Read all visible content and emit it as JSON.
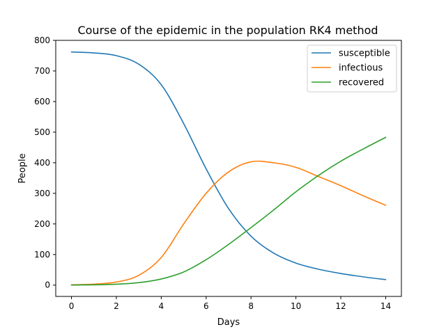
{
  "chart_data": {
    "type": "line",
    "title": "Course of the epidemic in the population RK4 method",
    "xlabel": "Days",
    "ylabel": "People",
    "xlim": [
      -0.7,
      14.7
    ],
    "ylim": [
      -37,
      800
    ],
    "xticks": [
      0,
      2,
      4,
      6,
      8,
      10,
      12,
      14
    ],
    "yticks": [
      0,
      100,
      200,
      300,
      400,
      500,
      600,
      700,
      800
    ],
    "grid": false,
    "legend": "top-right",
    "x": [
      0,
      1,
      2,
      3,
      4,
      5,
      6,
      7,
      8,
      9,
      10,
      11,
      12,
      13,
      14
    ],
    "series": [
      {
        "name": "susceptible",
        "color": "#1f77b4",
        "values": [
          762,
          759,
          750,
          722,
          655,
          528,
          380,
          250,
          160,
          105,
          72,
          52,
          38,
          27,
          18
        ]
      },
      {
        "name": "infectious",
        "color": "#ff7f0e",
        "values": [
          1,
          3,
          10,
          32,
          90,
          200,
          300,
          370,
          403,
          400,
          385,
          355,
          325,
          292,
          261
        ]
      },
      {
        "name": "recovered",
        "color": "#2ca02c",
        "values": [
          0,
          1,
          3,
          8,
          20,
          43,
          83,
          133,
          188,
          245,
          305,
          358,
          405,
          445,
          483
        ]
      }
    ]
  }
}
